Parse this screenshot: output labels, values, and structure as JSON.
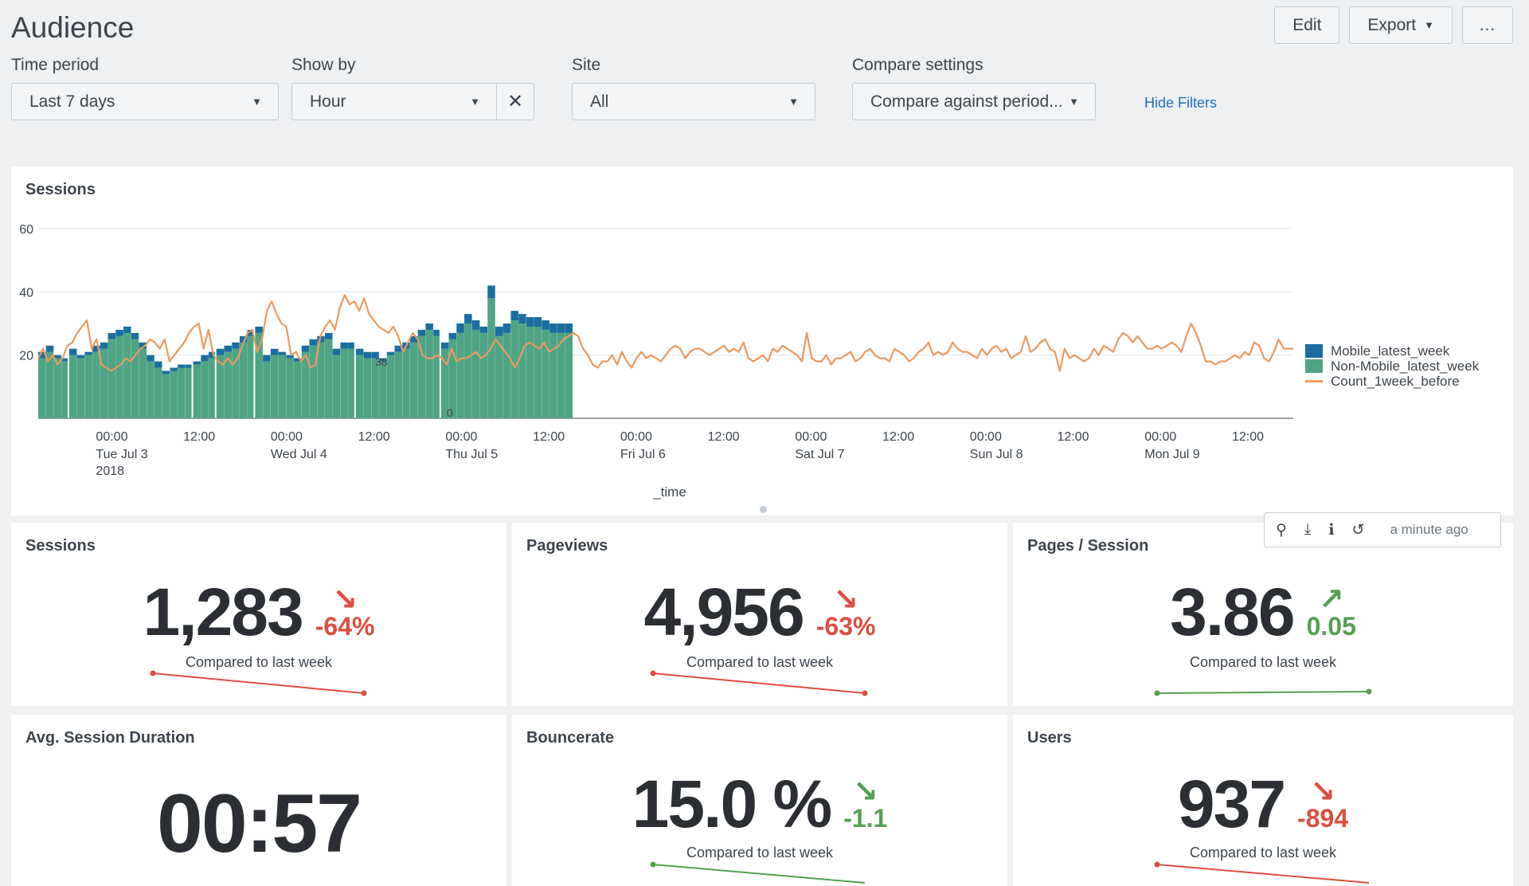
{
  "page": {
    "title": "Audience"
  },
  "actions": {
    "edit": "Edit",
    "export": "Export",
    "more": "..."
  },
  "filters": {
    "time_period": {
      "label": "Time period",
      "value": "Last 7 days"
    },
    "show_by": {
      "label": "Show by",
      "value": "Hour"
    },
    "site": {
      "label": "Site",
      "value": "All"
    },
    "compare": {
      "label": "Compare settings",
      "value": "Compare against period..."
    },
    "hide_filters": "Hide Filters"
  },
  "sessions_chart": {
    "title": "Sessions"
  },
  "chart_data": {
    "type": "bar",
    "xlabel": "_time",
    "ylabel": "",
    "ylim": [
      0,
      60
    ],
    "y_ticks": [
      "60",
      "40",
      "20"
    ],
    "x_tick_labels": [
      {
        "time": "00:00",
        "date": "Tue Jul 3",
        "year": "2018"
      },
      {
        "time": "12:00",
        "date": "",
        "year": ""
      },
      {
        "time": "00:00",
        "date": "Wed Jul 4",
        "year": ""
      },
      {
        "time": "12:00",
        "date": "",
        "year": ""
      },
      {
        "time": "00:00",
        "date": "Thu Jul 5",
        "year": ""
      },
      {
        "time": "12:00",
        "date": "",
        "year": ""
      },
      {
        "time": "00:00",
        "date": "Fri Jul 6",
        "year": ""
      },
      {
        "time": "12:00",
        "date": "",
        "year": ""
      },
      {
        "time": "00:00",
        "date": "Sat Jul 7",
        "year": ""
      },
      {
        "time": "12:00",
        "date": "",
        "year": ""
      },
      {
        "time": "00:00",
        "date": "Sun Jul 8",
        "year": ""
      },
      {
        "time": "12:00",
        "date": "",
        "year": ""
      },
      {
        "time": "00:00",
        "date": "Mon Jul 9",
        "year": ""
      },
      {
        "time": "12:00",
        "date": "",
        "year": ""
      }
    ],
    "annotations": [
      "38",
      "0"
    ],
    "series": [
      {
        "name": "Non-Mobile_latest_week",
        "color": "#4fa484",
        "kind": "stacked-bar",
        "values": [
          19,
          21,
          19,
          18,
          20,
          19,
          20,
          21,
          22,
          25,
          26,
          27,
          25,
          22,
          18,
          16,
          14,
          15,
          16,
          16,
          17,
          18,
          19,
          20,
          21,
          22,
          24,
          26,
          27,
          18,
          20,
          20,
          19,
          18,
          21,
          23,
          24,
          25,
          20,
          22,
          22,
          20,
          19,
          19,
          18,
          20,
          21,
          22,
          24,
          26,
          28,
          26,
          22,
          25,
          27,
          30,
          28,
          27,
          38,
          26,
          27,
          31,
          30,
          29,
          29,
          28,
          27,
          27,
          27
        ]
      },
      {
        "name": "Mobile_latest_week",
        "color": "#1a6ea0",
        "kind": "stacked-bar",
        "values": [
          2,
          2,
          1,
          1,
          2,
          1,
          1,
          2,
          2,
          2,
          2,
          2,
          2,
          2,
          2,
          2,
          1,
          1,
          1,
          1,
          1,
          2,
          2,
          2,
          2,
          2,
          2,
          2,
          2,
          2,
          2,
          1,
          1,
          1,
          2,
          2,
          2,
          2,
          2,
          2,
          2,
          2,
          2,
          2,
          1,
          1,
          2,
          2,
          2,
          2,
          2,
          2,
          2,
          2,
          3,
          3,
          3,
          2,
          4,
          3,
          3,
          3,
          3,
          3,
          3,
          3,
          3,
          3,
          3
        ]
      },
      {
        "name": "Count_1week_before",
        "color": "#ec9960",
        "kind": "line",
        "values": [
          19,
          22,
          18,
          20,
          17,
          19,
          23,
          24,
          27,
          29,
          31,
          22,
          25,
          17,
          16,
          15,
          16,
          17,
          19,
          18,
          20,
          22,
          23,
          25,
          24,
          22,
          25,
          18,
          20,
          22,
          24,
          27,
          29,
          30,
          22,
          28,
          20,
          18,
          17,
          19,
          17,
          19,
          23,
          27,
          28,
          21,
          25,
          34,
          37,
          33,
          30,
          29,
          20,
          21,
          18,
          20,
          16,
          17,
          26,
          29,
          31,
          28,
          35,
          39,
          36,
          37,
          34,
          38,
          33,
          31,
          29,
          28,
          27,
          29,
          26,
          21,
          24,
          27,
          25,
          20,
          19,
          19,
          20,
          19,
          17,
          22,
          18,
          19,
          19,
          20,
          21,
          19,
          20,
          22,
          25,
          23,
          21,
          19,
          16,
          19,
          23,
          24,
          23,
          22,
          24,
          21,
          22,
          23,
          25,
          26,
          27,
          26,
          22,
          20,
          17,
          16,
          18,
          18,
          20,
          17,
          21,
          18,
          16,
          19,
          21,
          19,
          20,
          19,
          18,
          20,
          22,
          23,
          22,
          19,
          21,
          22,
          22,
          21,
          20,
          21,
          22,
          23,
          21,
          22,
          21,
          24,
          19,
          18,
          19,
          20,
          18,
          22,
          21,
          23,
          22,
          21,
          20,
          18,
          27,
          19,
          18,
          18,
          20,
          17,
          19,
          19,
          20,
          21,
          18,
          19,
          21,
          22,
          20,
          19,
          19,
          18,
          22,
          21,
          20,
          18,
          19,
          21,
          22,
          24,
          20,
          21,
          20,
          21,
          24,
          22,
          21,
          21,
          20,
          19,
          22,
          20,
          22,
          23,
          21,
          22,
          19,
          20,
          21,
          26,
          21,
          22,
          24,
          25,
          22,
          21,
          15,
          22,
          19,
          20,
          19,
          18,
          19,
          22,
          20,
          23,
          22,
          21,
          25,
          27,
          26,
          24,
          26,
          24,
          22,
          22,
          23,
          22,
          23,
          24,
          23,
          21,
          26,
          30,
          27,
          23,
          18,
          18,
          17,
          18,
          18,
          19,
          20,
          19,
          21,
          20,
          24,
          23,
          19,
          18,
          21,
          25,
          22,
          22,
          22
        ]
      }
    ],
    "legend_position": "right"
  },
  "kpis": {
    "sessions": {
      "title": "Sessions",
      "value": "1,283",
      "arrow": "↘",
      "delta": "-64%",
      "trend": "down",
      "compare": "Compared to last week",
      "spark": [
        1.0,
        0.0
      ]
    },
    "pageviews": {
      "title": "Pageviews",
      "value": "4,956",
      "arrow": "↘",
      "delta": "-63%",
      "trend": "down",
      "compare": "Compared to last week",
      "spark": [
        1.0,
        0.0
      ]
    },
    "pages_session": {
      "title": "Pages / Session",
      "value": "3.86",
      "arrow": "↗",
      "delta": "0.05",
      "trend": "up",
      "compare": "Compared to last week",
      "spark": [
        0.0,
        0.1
      ]
    },
    "avg_duration": {
      "title": "Avg. Session Duration",
      "value": "00:57"
    },
    "bouncerate": {
      "title": "Bouncerate",
      "value": "15.0 %",
      "arrow": "↘",
      "delta": "-1.1",
      "trend": "down-good",
      "compare": "Compared to last week",
      "spark": [
        1.0,
        0.0
      ]
    },
    "users": {
      "title": "Users",
      "value": "937",
      "arrow": "↘",
      "delta": "-894",
      "trend": "down",
      "compare": "Compared to last week",
      "spark": [
        1.0,
        0.0
      ]
    }
  },
  "panel_toolbar": {
    "ago": "a minute ago"
  }
}
